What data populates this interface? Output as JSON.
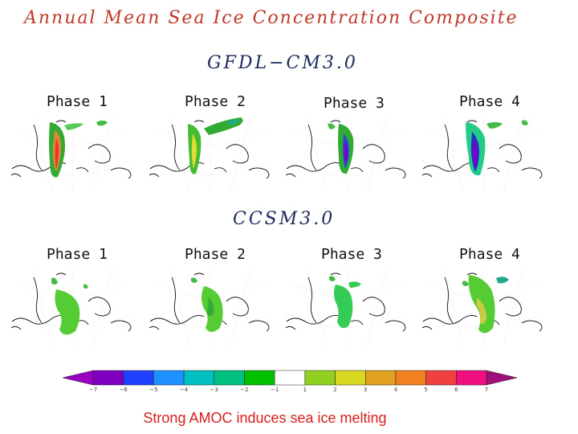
{
  "title": "Annual Mean Sea Ice Concentration Composite",
  "models": [
    {
      "name": "GFDL−CM3.0",
      "phases": [
        "Phase 1",
        "Phase 2",
        "Phase 3",
        "Phase 4"
      ]
    },
    {
      "name": "CCSM3.0",
      "phases": [
        "Phase 1",
        "Phase 2",
        "Phase 3",
        "Phase 4"
      ]
    }
  ],
  "colorbar": {
    "colors": [
      "#8000c0",
      "#2040ff",
      "#1e90ff",
      "#00c0c0",
      "#00c080",
      "#00c000",
      "#ffffff",
      "#90d020",
      "#d8d820",
      "#e0a020",
      "#f08020",
      "#f04040",
      "#f01080"
    ],
    "ticks": [
      "−7",
      "−6",
      "−5",
      "−4",
      "−3",
      "−2",
      "−1",
      "1",
      "2",
      "3",
      "4",
      "5",
      "6",
      "7"
    ]
  },
  "caption": "Strong AMOC induces sea ice melting"
}
